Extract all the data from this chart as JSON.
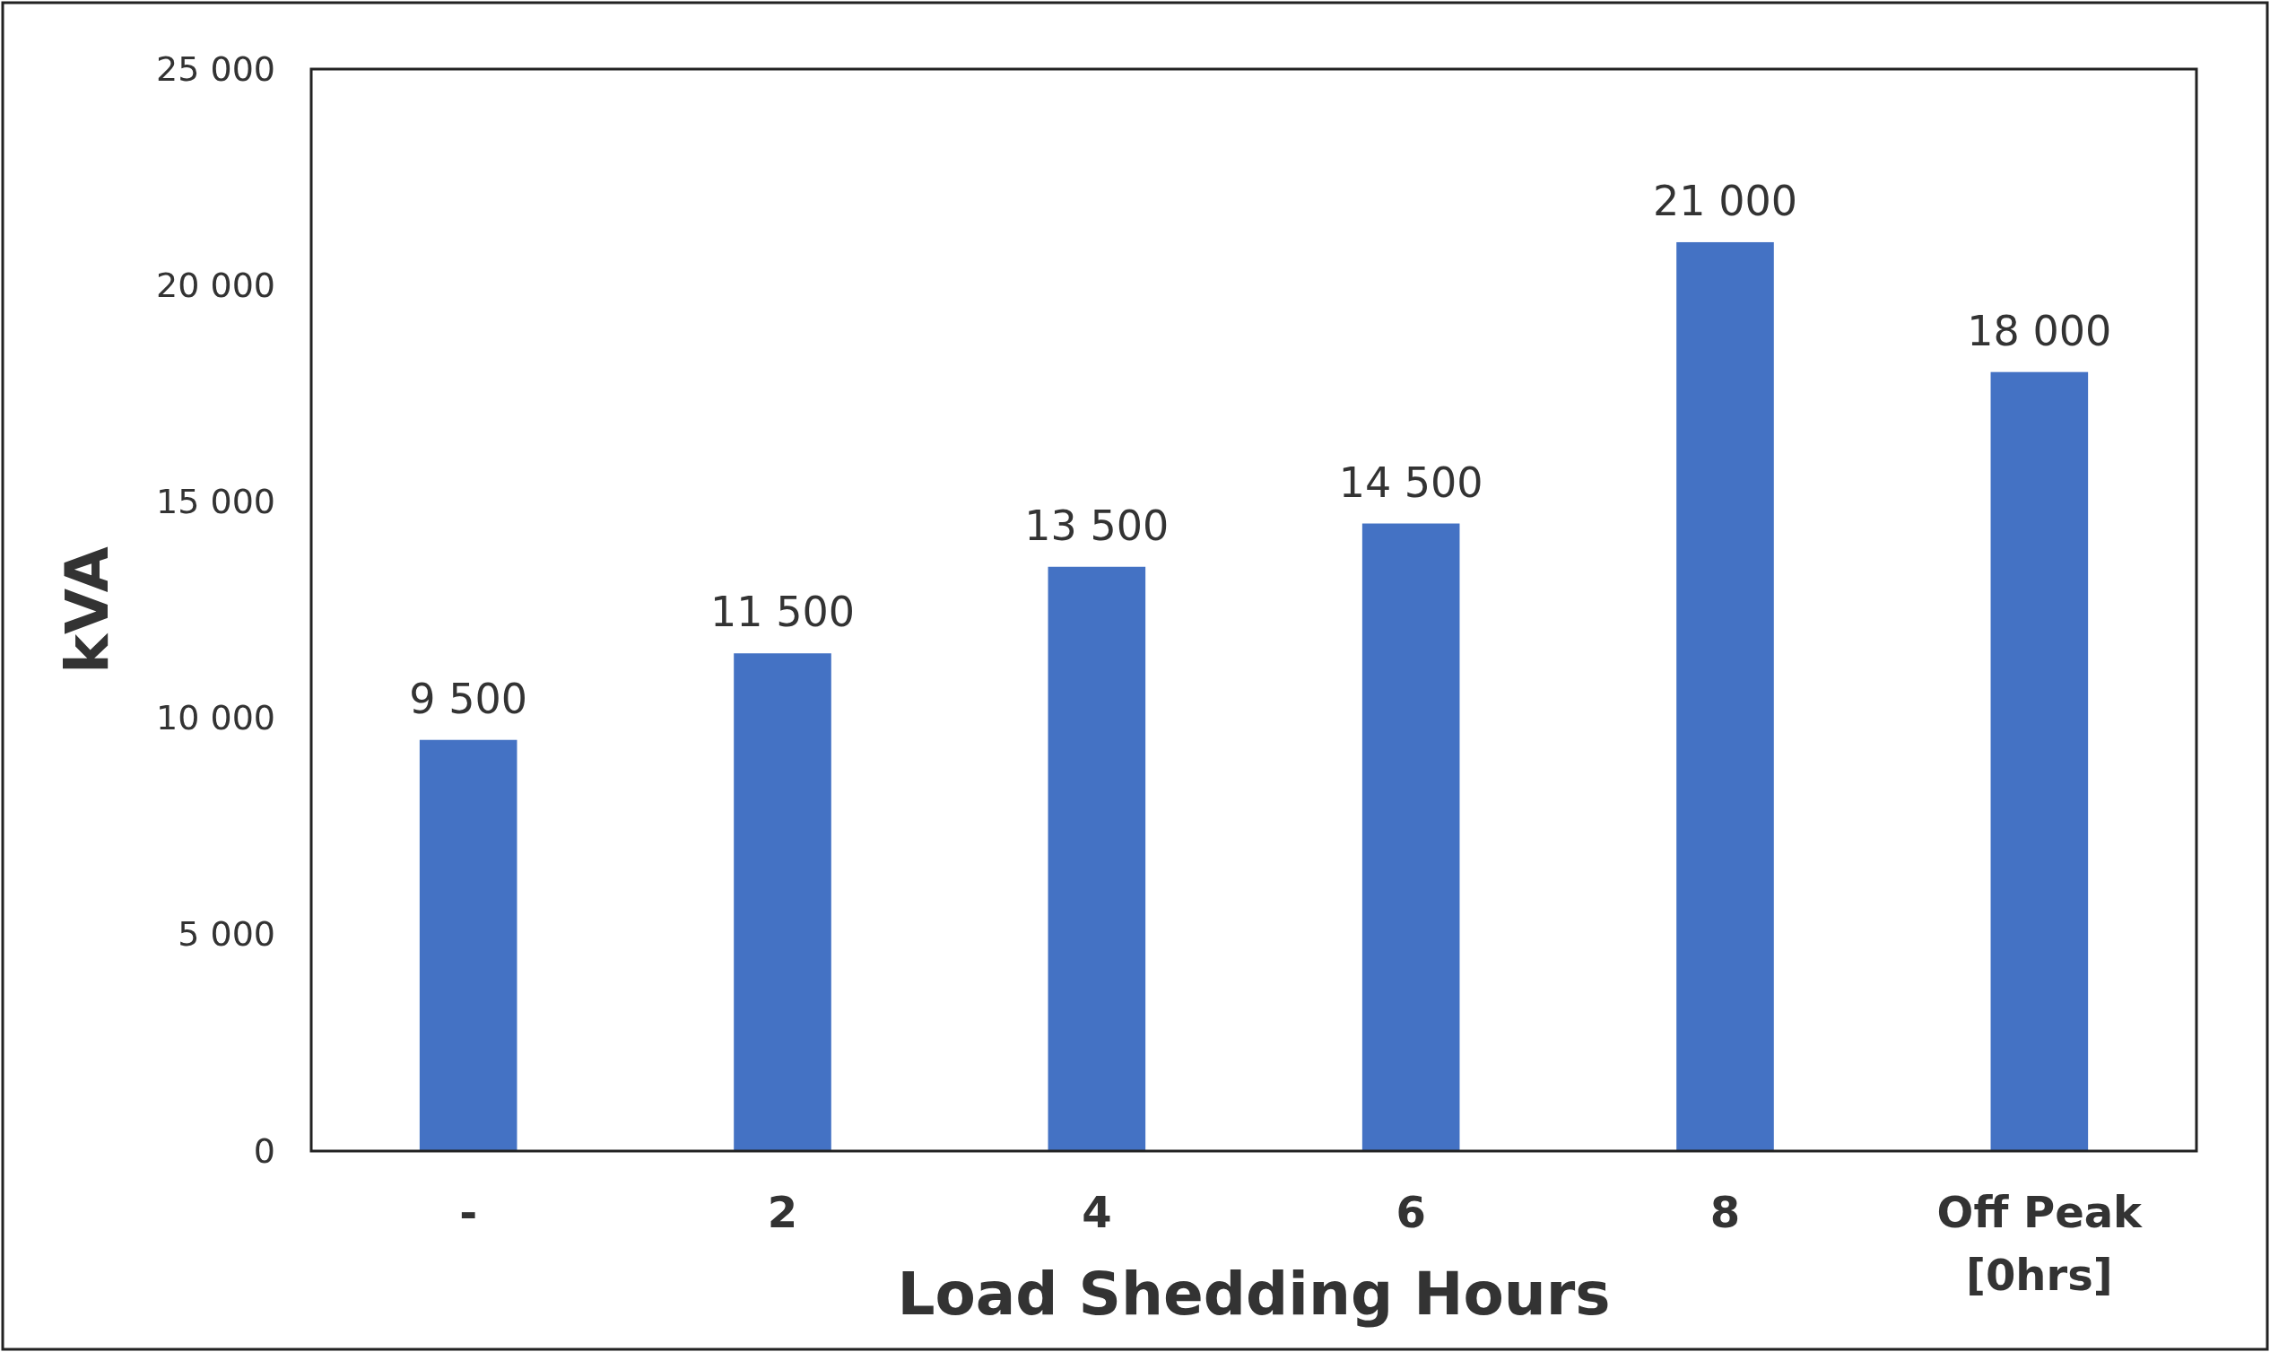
{
  "chart_data": {
    "type": "bar",
    "xlabel": "Load Shedding Hours",
    "ylabel": "kVA",
    "categories": [
      "-",
      "2",
      "4",
      "6",
      "8",
      "Off Peak\n[0hrs]"
    ],
    "values": [
      9500,
      11500,
      13500,
      14500,
      21000,
      18000
    ],
    "value_labels": [
      "9 500",
      "11 500",
      "13 500",
      "14 500",
      "21 000",
      "18 000"
    ],
    "color": "#4472c4",
    "ylim": [
      0,
      25000
    ],
    "yticks": [
      0,
      {
        "value": 5000,
        "label": "5 000"
      },
      {
        "value": 10000,
        "label": "10 000"
      },
      {
        "value": 15000,
        "label": "15 000"
      },
      {
        "value": 20000,
        "label": "20 000"
      },
      {
        "value": 25000,
        "label": "25 000"
      }
    ],
    "grid": false
  }
}
